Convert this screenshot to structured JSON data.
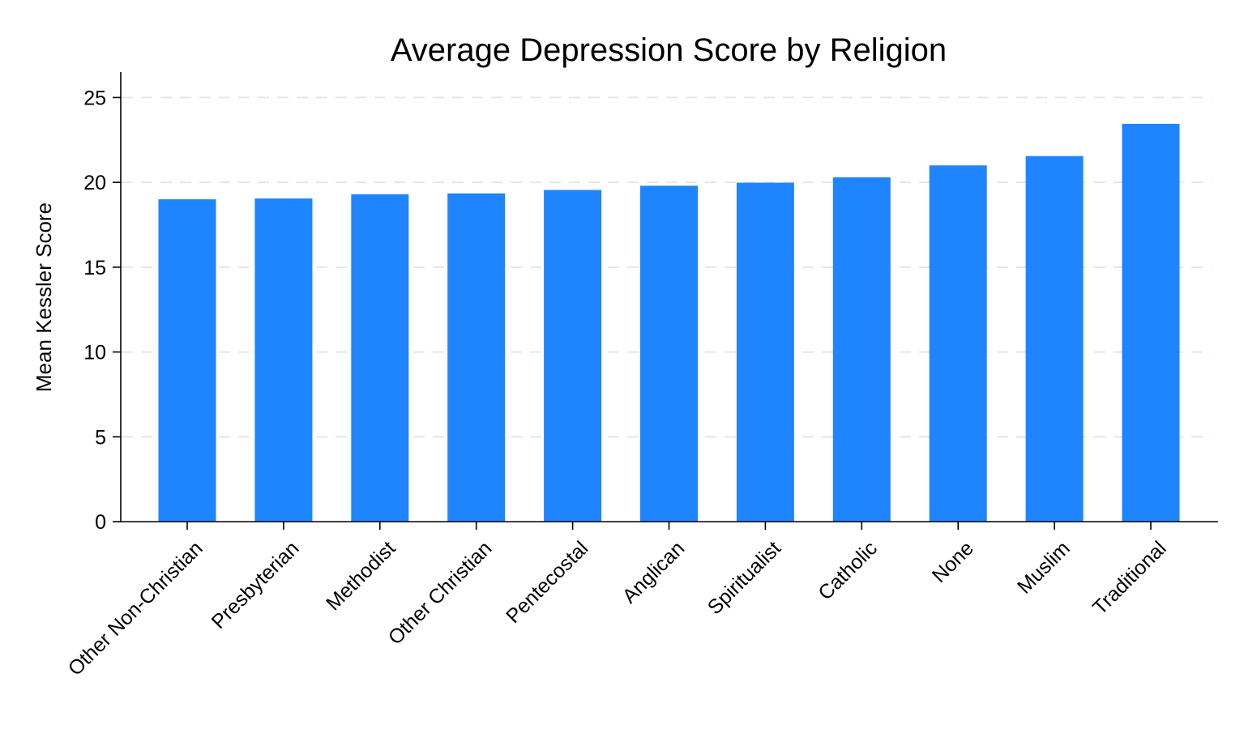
{
  "chart_data": {
    "type": "bar",
    "title": "Average Depression Score by Religion",
    "xlabel": "",
    "ylabel": "Mean Kessler Score",
    "categories": [
      "Other Non-Christian",
      "Presbyterian",
      "Methodist",
      "Other Christian",
      "Pentecostal",
      "Anglican",
      "Spiritualist",
      "Catholic",
      "None",
      "Muslim",
      "Traditional"
    ],
    "values": [
      19.0,
      19.05,
      19.3,
      19.35,
      19.55,
      19.8,
      19.98,
      20.3,
      21.0,
      21.55,
      23.45
    ],
    "ylim": [
      0,
      26.5
    ],
    "yticks": [
      0,
      5,
      10,
      15,
      20,
      25
    ],
    "bar_color": "#1f85ff",
    "grid": true,
    "grid_color": "#e6e6e6",
    "axis_color": "#000000"
  }
}
